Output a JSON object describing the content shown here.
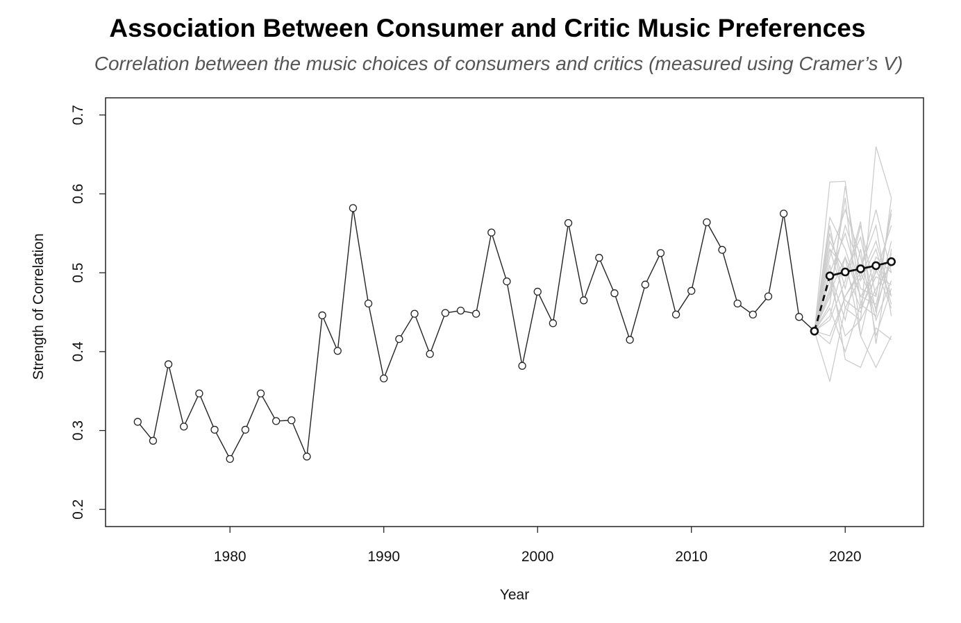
{
  "title": "Association Between Consumer and Critic Music Preferences",
  "subtitle": "Correlation between the music choices of consumers and critics (measured using Cramer’s V)",
  "chart_data": {
    "type": "line",
    "xlabel": "Year",
    "ylabel": "Strength of Correlation",
    "xlim": [
      1972,
      2025
    ],
    "ylim": [
      0.18,
      0.72
    ],
    "x_ticks": [
      1980,
      1990,
      2000,
      2010,
      2020
    ],
    "x_tick_labels": [
      "1980",
      "1990",
      "2000",
      "2010",
      "2020"
    ],
    "y_ticks": [
      0.2,
      0.3,
      0.4,
      0.5,
      0.6,
      0.7
    ],
    "y_tick_labels": [
      "0.2",
      "0.3",
      "0.4",
      "0.5",
      "0.6",
      "0.7"
    ],
    "grid": false,
    "legend": "none",
    "colors": {
      "observed": "#222222",
      "forecast": "#111111",
      "simulations": "#cccccc"
    },
    "observed": {
      "x": [
        1974,
        1975,
        1976,
        1977,
        1978,
        1979,
        1980,
        1981,
        1982,
        1983,
        1984,
        1985,
        1986,
        1987,
        1988,
        1989,
        1990,
        1991,
        1992,
        1993,
        1994,
        1995,
        1996,
        1997,
        1998,
        1999,
        2000,
        2001,
        2002,
        2003,
        2004,
        2005,
        2006,
        2007,
        2008,
        2009,
        2010,
        2011,
        2012,
        2013,
        2014,
        2015,
        2016,
        2017,
        2018
      ],
      "y": [
        0.311,
        0.287,
        0.384,
        0.305,
        0.347,
        0.301,
        0.264,
        0.301,
        0.347,
        0.312,
        0.313,
        0.267,
        0.446,
        0.401,
        0.582,
        0.461,
        0.366,
        0.416,
        0.448,
        0.397,
        0.449,
        0.452,
        0.448,
        0.551,
        0.489,
        0.382,
        0.476,
        0.436,
        0.563,
        0.465,
        0.519,
        0.474,
        0.415,
        0.485,
        0.525,
        0.447,
        0.477,
        0.564,
        0.529,
        0.461,
        0.447,
        0.47,
        0.575,
        0.444,
        0.426
      ]
    },
    "forecast": {
      "x": [
        2018,
        2019,
        2020,
        2021,
        2022,
        2023
      ],
      "y": [
        0.426,
        0.496,
        0.501,
        0.505,
        0.509,
        0.514
      ]
    },
    "simulations": [
      [
        0.426,
        0.615,
        0.616,
        0.46,
        0.445,
        0.595
      ],
      [
        0.426,
        0.362,
        0.455,
        0.44,
        0.66,
        0.595
      ],
      [
        0.426,
        0.47,
        0.595,
        0.42,
        0.38,
        0.42
      ],
      [
        0.426,
        0.55,
        0.48,
        0.56,
        0.47,
        0.575
      ],
      [
        0.426,
        0.51,
        0.39,
        0.38,
        0.43,
        0.415
      ],
      [
        0.426,
        0.48,
        0.56,
        0.505,
        0.58,
        0.5
      ],
      [
        0.426,
        0.53,
        0.465,
        0.45,
        0.51,
        0.47
      ],
      [
        0.426,
        0.445,
        0.52,
        0.47,
        0.46,
        0.54
      ],
      [
        0.426,
        0.5,
        0.44,
        0.53,
        0.42,
        0.48
      ],
      [
        0.426,
        0.46,
        0.61,
        0.49,
        0.53,
        0.46
      ],
      [
        0.426,
        0.54,
        0.5,
        0.545,
        0.45,
        0.525
      ],
      [
        0.426,
        0.42,
        0.47,
        0.505,
        0.56,
        0.445
      ],
      [
        0.426,
        0.57,
        0.53,
        0.47,
        0.5,
        0.56
      ],
      [
        0.426,
        0.49,
        0.42,
        0.44,
        0.48,
        0.51
      ],
      [
        0.426,
        0.52,
        0.58,
        0.52,
        0.44,
        0.49
      ],
      [
        0.426,
        0.455,
        0.4,
        0.46,
        0.52,
        0.5
      ],
      [
        0.426,
        0.5,
        0.55,
        0.48,
        0.47,
        0.58
      ],
      [
        0.426,
        0.44,
        0.49,
        0.565,
        0.41,
        0.53
      ],
      [
        0.426,
        0.56,
        0.455,
        0.495,
        0.54,
        0.47
      ],
      [
        0.426,
        0.475,
        0.52,
        0.42,
        0.505,
        0.455
      ],
      [
        0.426,
        0.41,
        0.47,
        0.5,
        0.455,
        0.52
      ],
      [
        0.426,
        0.53,
        0.505,
        0.455,
        0.495,
        0.485
      ]
    ]
  }
}
